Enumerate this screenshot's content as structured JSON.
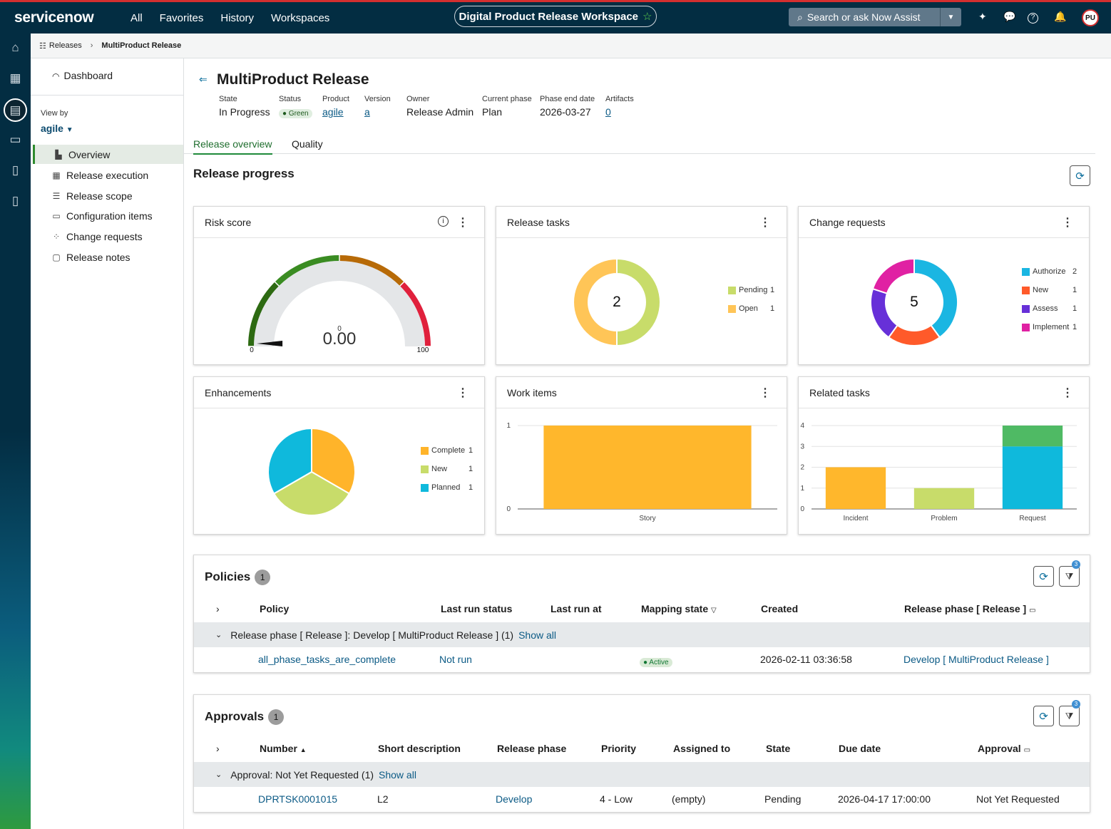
{
  "topbar": {
    "logo": "servicenow",
    "nav": [
      "All",
      "Favorites",
      "History",
      "Workspaces"
    ],
    "workspace_title": "Digital Product Release Workspace",
    "search_placeholder": "Search or ask Now Assist",
    "avatar_initials": "PU"
  },
  "breadcrumb": {
    "root": "Releases",
    "current": "MultiProduct Release"
  },
  "sidebar": {
    "dashboard": "Dashboard",
    "view_by_label": "View by",
    "view_by_value": "agile",
    "items": [
      {
        "label": "Overview",
        "icon": "bar-chart-icon",
        "active": true
      },
      {
        "label": "Release execution",
        "icon": "grid-icon"
      },
      {
        "label": "Release scope",
        "icon": "list-icon"
      },
      {
        "label": "Configuration items",
        "icon": "box-icon"
      },
      {
        "label": "Change requests",
        "icon": "nodes-icon"
      },
      {
        "label": "Release notes",
        "icon": "note-icon"
      }
    ]
  },
  "header": {
    "title": "MultiProduct Release",
    "fields": [
      {
        "label": "State",
        "value": "In Progress"
      },
      {
        "label": "Status",
        "value": "Green"
      },
      {
        "label": "Product",
        "value": "agile"
      },
      {
        "label": "Version",
        "value": "a"
      },
      {
        "label": "Owner",
        "value": "Release Admin"
      },
      {
        "label": "Current phase",
        "value": "Plan"
      },
      {
        "label": "Phase end date",
        "value": "2026-03-27"
      },
      {
        "label": "Artifacts",
        "value": "0"
      }
    ]
  },
  "tabs": [
    "Release overview",
    "Quality"
  ],
  "section_title": "Release progress",
  "cards": {
    "risk": {
      "title": "Risk score",
      "value": "0.00",
      "small": "0",
      "min": "0",
      "max": "100"
    },
    "tasks": {
      "title": "Release tasks",
      "total": "2"
    },
    "changes": {
      "title": "Change requests",
      "total": "5"
    },
    "enh": {
      "title": "Enhancements"
    },
    "work": {
      "title": "Work items"
    },
    "related": {
      "title": "Related tasks"
    }
  },
  "chart_data": [
    {
      "type": "gauge",
      "title": "Risk score",
      "value": 0,
      "range": [
        0,
        100
      ]
    },
    {
      "type": "pie",
      "title": "Release tasks",
      "categories": [
        "Pending",
        "Open"
      ],
      "values": [
        1,
        1
      ],
      "colors": [
        "#c8dc6a",
        "#ffc557"
      ]
    },
    {
      "type": "pie",
      "title": "Change requests",
      "categories": [
        "Authorize",
        "New",
        "Assess",
        "Implement"
      ],
      "values": [
        2,
        1,
        1,
        1
      ],
      "colors": [
        "#1ab6e2",
        "#ff5a2a",
        "#6730d8",
        "#e021a3"
      ]
    },
    {
      "type": "pie",
      "title": "Enhancements",
      "categories": [
        "Complete",
        "New",
        "Planned"
      ],
      "values": [
        1,
        1,
        1
      ],
      "colors": [
        "#ffb42a",
        "#c8dc6a",
        "#0fb9dc"
      ]
    },
    {
      "type": "bar",
      "title": "Work items",
      "categories": [
        "Story"
      ],
      "values": [
        1
      ],
      "ylim": [
        0,
        1
      ],
      "ticks": [
        0,
        1
      ],
      "colors": [
        "#ffb72c"
      ]
    },
    {
      "type": "bar",
      "title": "Related tasks",
      "categories": [
        "Incident",
        "Problem",
        "Request"
      ],
      "series": [
        {
          "values": [
            2,
            1,
            3
          ],
          "colors": [
            "#ffb72c",
            "#c8dc6a",
            "#0fb9dc"
          ]
        },
        {
          "values": [
            0,
            0,
            1
          ],
          "colors": [
            "#4fba64",
            "#4fba64",
            "#4fba64"
          ]
        }
      ],
      "ylim": [
        0,
        4
      ],
      "ticks": [
        0,
        1,
        2,
        3,
        4
      ]
    }
  ],
  "policies": {
    "title": "Policies",
    "count": "1",
    "filter_count": "3",
    "columns": [
      "Policy",
      "Last run status",
      "Last run at",
      "Mapping state",
      "Created",
      "Release phase [ Release ]"
    ],
    "group_label": "Release phase [ Release ]: Develop [ MultiProduct Release ] (1)",
    "show_all": "Show all",
    "row": {
      "policy": "all_phase_tasks_are_complete",
      "status": "Not run",
      "mapping": "Active",
      "created": "2026-02-11 03:36:58",
      "phase": "Develop [ MultiProduct Release ]"
    }
  },
  "approvals": {
    "title": "Approvals",
    "count": "1",
    "filter_count": "3",
    "columns": [
      "Number",
      "Short description",
      "Release phase",
      "Priority",
      "Assigned to",
      "State",
      "Due date",
      "Approval"
    ],
    "group_label": "Approval: Not Yet Requested (1)",
    "show_all": "Show all",
    "row": {
      "number": "DPRTSK0001015",
      "desc": "L2",
      "phase": "Develop",
      "priority": "4 - Low",
      "assigned": "(empty)",
      "state": "Pending",
      "due": "2026-04-17 17:00:00",
      "approval": "Not Yet Requested"
    }
  }
}
